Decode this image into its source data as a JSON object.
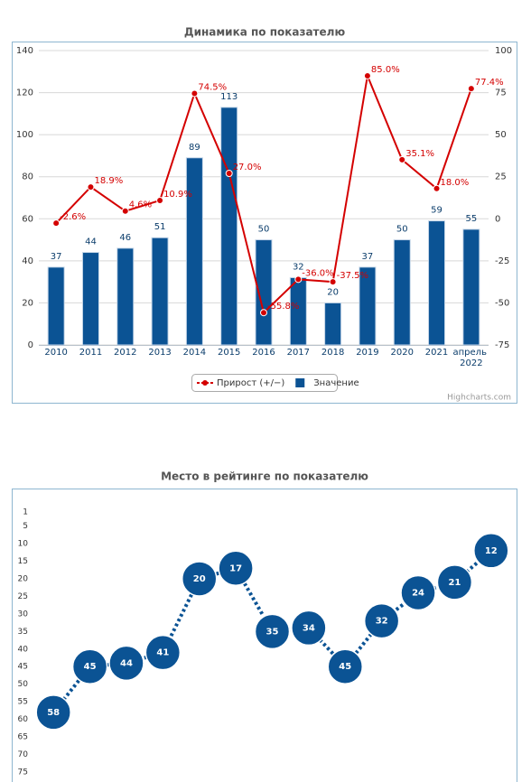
{
  "chart_data": [
    {
      "type": "combo",
      "title": "Динамика по показателю",
      "categories": [
        "2010",
        "2011",
        "2012",
        "2013",
        "2014",
        "2015",
        "2016",
        "2017",
        "2018",
        "2019",
        "2020",
        "2021",
        "апрель 2022"
      ],
      "series": [
        {
          "name": "Прирост (+/−)",
          "type": "line",
          "axis": "y2",
          "color": "#d40000",
          "values": [
            -2.6,
            18.9,
            4.6,
            10.9,
            74.5,
            27.0,
            -55.8,
            -36.0,
            -37.5,
            85.0,
            35.1,
            18.0,
            77.4
          ],
          "value_labels": [
            "-2.6%",
            "18.9%",
            "4.6%",
            "10.9%",
            "74.5%",
            "27.0%",
            "-55.8%",
            "-36.0%",
            "-37.5%",
            "85.0%",
            "35.1%",
            "18.0%",
            "77.4%"
          ]
        },
        {
          "name": "Значение",
          "type": "bar",
          "color": "#0b5394",
          "values": [
            37,
            44,
            46,
            51,
            89,
            113,
            50,
            32,
            20,
            37,
            50,
            59,
            55
          ]
        }
      ],
      "ylim": [
        0,
        140
      ],
      "yticks": [
        0,
        20,
        40,
        60,
        80,
        100,
        120,
        140
      ],
      "y2lim": [
        -75,
        100
      ],
      "y2ticks": [
        -75,
        -50,
        -25,
        0,
        25,
        50,
        75,
        100
      ],
      "grid": true,
      "legend": "bottom",
      "credits": "Highcharts.com"
    },
    {
      "type": "line",
      "title": "Место в рейтинге по показателю",
      "values": [
        58,
        45,
        44,
        41,
        20,
        17,
        35,
        34,
        45,
        32,
        24,
        21,
        12
      ],
      "color": "#0b5394",
      "line_style": "dotted",
      "reversed": true,
      "grid": false,
      "ylim": [
        1,
        75
      ],
      "yticks": [
        1,
        5,
        10,
        15,
        20,
        25,
        30,
        35,
        40,
        45,
        50,
        55,
        60,
        65,
        70,
        75
      ]
    }
  ]
}
